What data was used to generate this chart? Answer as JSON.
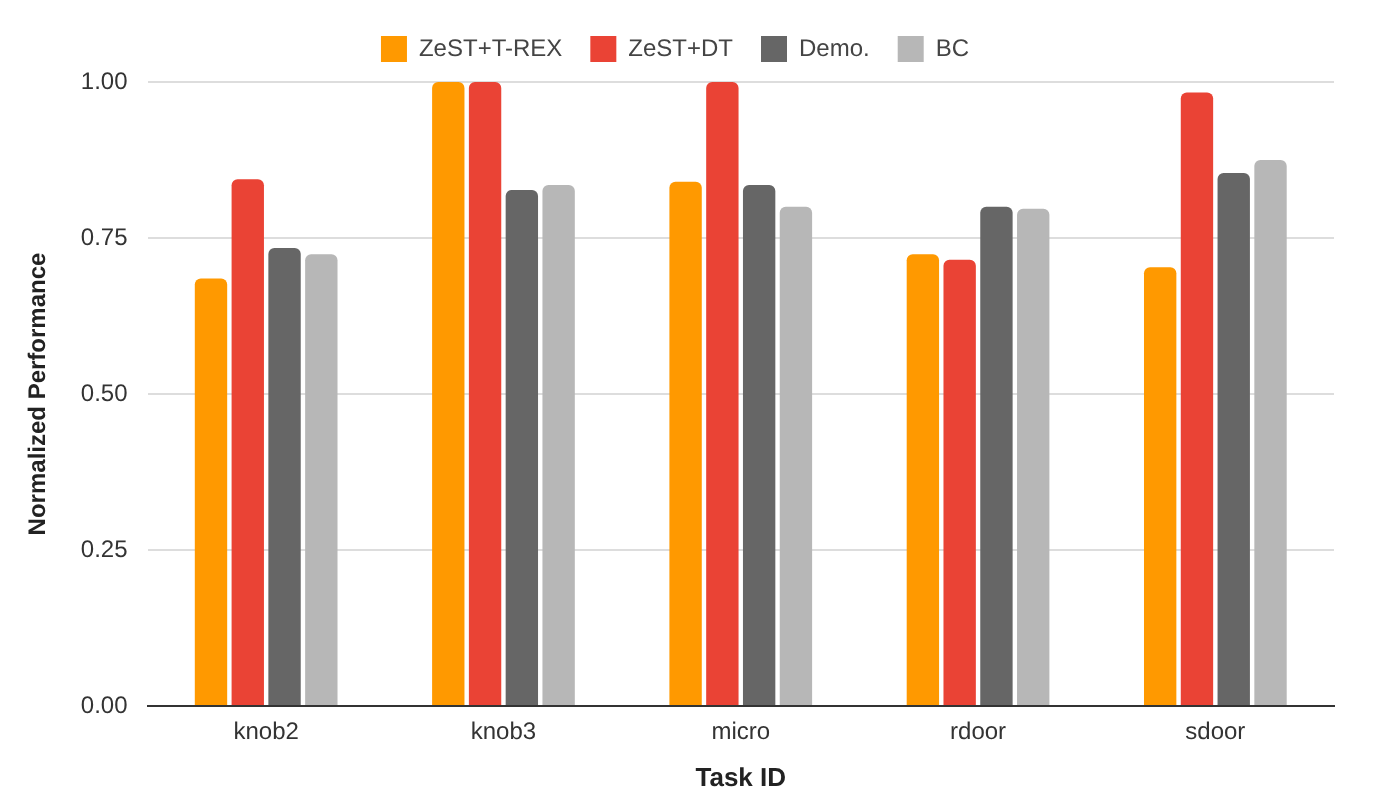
{
  "chart_data": {
    "type": "bar",
    "xlabel": "Task ID",
    "ylabel": "Normalized Performance",
    "categories": [
      "knob2",
      "knob3",
      "micro",
      "rdoor",
      "sdoor"
    ],
    "series": [
      {
        "name": "ZeST+T-REX",
        "color": "#ff9900",
        "values": [
          0.685,
          1.0,
          0.84,
          0.724,
          0.703
        ]
      },
      {
        "name": "ZeST+DT",
        "color": "#ea4335",
        "values": [
          0.844,
          1.0,
          1.0,
          0.715,
          0.983
        ]
      },
      {
        "name": "Demo.",
        "color": "#666666",
        "values": [
          0.734,
          0.827,
          0.835,
          0.8,
          0.854
        ]
      },
      {
        "name": "BC",
        "color": "#b7b7b7",
        "values": [
          0.724,
          0.835,
          0.8,
          0.797,
          0.875
        ]
      }
    ],
    "ylim": [
      0,
      1
    ],
    "yticks": [
      {
        "value": 0,
        "label": "0.00"
      },
      {
        "value": 0.25,
        "label": "0.25"
      },
      {
        "value": 0.5,
        "label": "0.50"
      },
      {
        "value": 0.75,
        "label": "0.75"
      },
      {
        "value": 1,
        "label": "1.00"
      }
    ],
    "grid": "y",
    "legend": "top"
  }
}
